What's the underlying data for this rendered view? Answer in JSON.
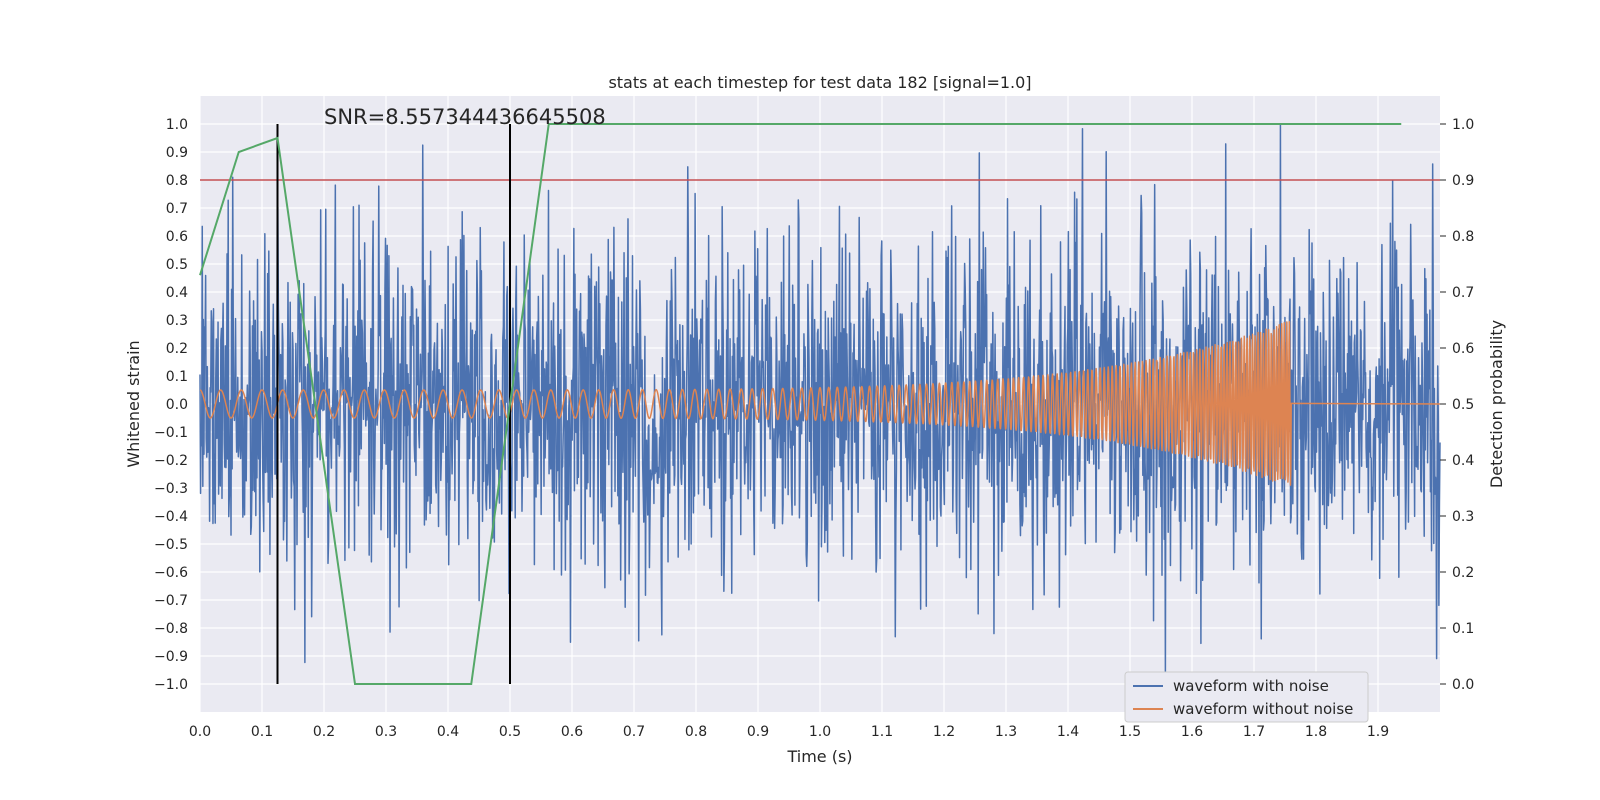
{
  "chart_data": {
    "type": "line",
    "title": "stats at each timestep for test data 182 [signal=1.0]",
    "xlabel": "Time (s)",
    "ylabel": "Whitened strain",
    "y2label": "Detection probability",
    "xlim": [
      0.0,
      2.0
    ],
    "ylim": [
      -1.1,
      1.1
    ],
    "y2lim": [
      -0.05,
      1.05
    ],
    "xticks": [
      "0.0",
      "0.1",
      "0.2",
      "0.3",
      "0.4",
      "0.5",
      "0.6",
      "0.7",
      "0.8",
      "0.9",
      "1.0",
      "1.1",
      "1.2",
      "1.3",
      "1.4",
      "1.5",
      "1.6",
      "1.7",
      "1.8",
      "1.9"
    ],
    "yticks": [
      "1.0",
      "0.9",
      "0.8",
      "0.7",
      "0.6",
      "0.5",
      "0.4",
      "0.3",
      "0.2",
      "0.1",
      "0.0",
      "−0.1",
      "−0.2",
      "−0.3",
      "−0.4",
      "−0.5",
      "−0.6",
      "−0.7",
      "−0.8",
      "−0.9",
      "−1.0"
    ],
    "y2ticks": [
      "1.0",
      "0.9",
      "0.8",
      "0.7",
      "0.6",
      "0.5",
      "0.4",
      "0.3",
      "0.2",
      "0.1",
      "0.0"
    ],
    "grid": true,
    "legend_position": "lower-right",
    "annotation": "SNR=8.557344436645508",
    "series": [
      {
        "name": "waveform with noise",
        "color": "#4c72b0",
        "kind": "noise",
        "amplitude_typical": 0.3,
        "amplitude_max": 1.0,
        "x_range": [
          0.0,
          2.0
        ]
      },
      {
        "name": "waveform without noise",
        "color": "#dd8452",
        "kind": "chirp",
        "amplitude_start": 0.05,
        "amplitude_end": 0.3,
        "x_range": [
          0.0,
          1.76
        ]
      }
    ],
    "detection_probability": {
      "color": "#55a868",
      "x": [
        0.0,
        0.0625,
        0.125,
        0.25,
        0.3125,
        0.4375,
        0.5625,
        0.625,
        1.9375
      ],
      "y": [
        0.73,
        0.95,
        0.975,
        0.0,
        0.0,
        0.0,
        1.0,
        1.0,
        1.0
      ]
    },
    "threshold": {
      "y": 0.8,
      "color": "#c44e52"
    },
    "vlines": [
      {
        "x": 0.125,
        "ymin": -1.0,
        "ymax": 1.0,
        "color": "#000000"
      },
      {
        "x": 0.5,
        "ymin": -1.0,
        "ymax": 1.0,
        "color": "#000000"
      }
    ],
    "plot_background": "#eaeaf2",
    "grid_color": "#ffffff"
  }
}
